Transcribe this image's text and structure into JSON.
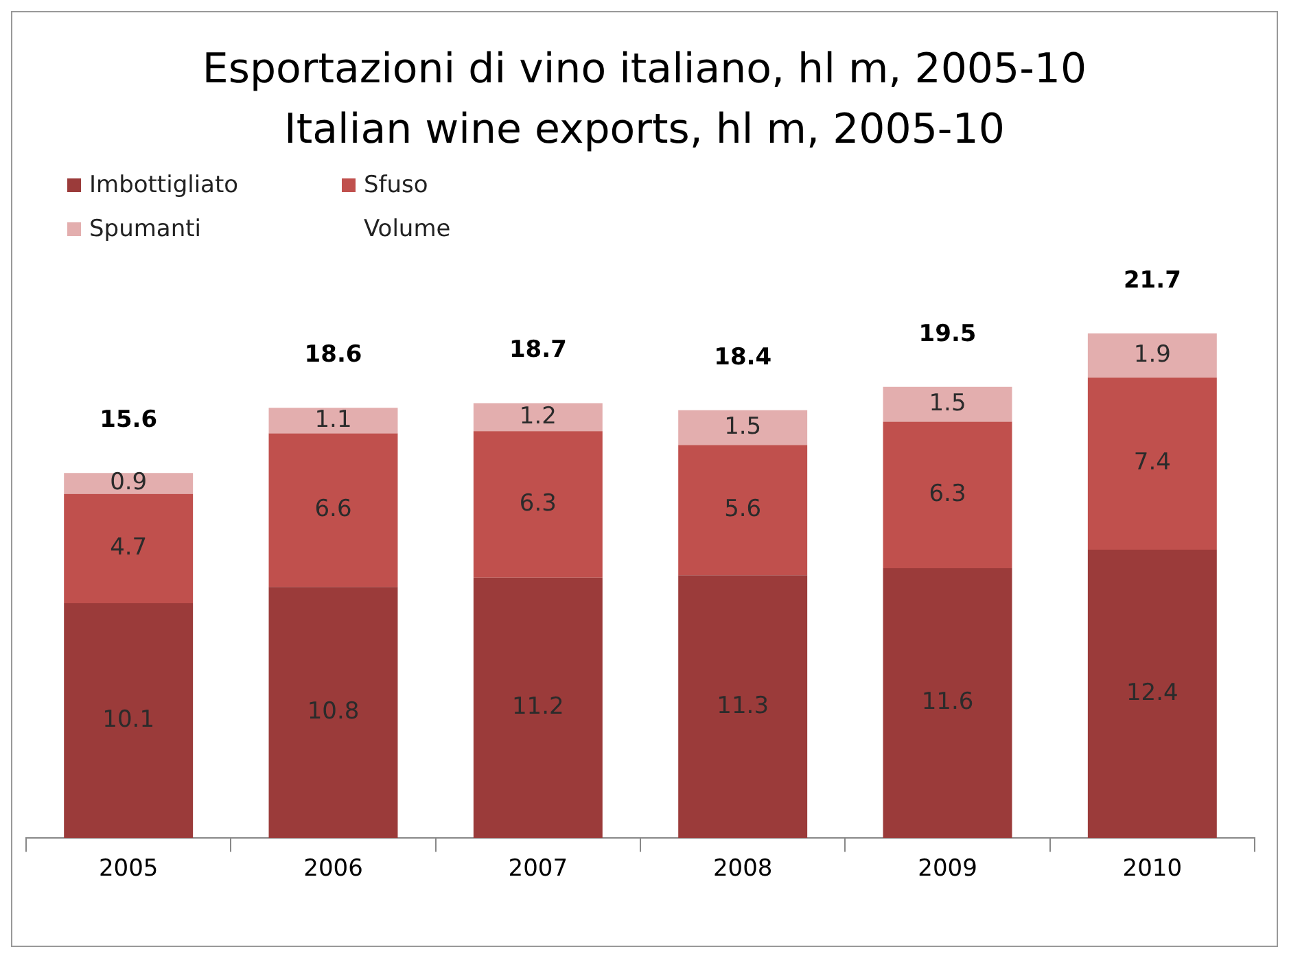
{
  "chart_data": {
    "type": "bar",
    "title": "Esportazioni di vino italiano, hl m, 2005-10",
    "subtitle": "Italian wine exports, hl m, 2005-10",
    "categories": [
      "2005",
      "2006",
      "2007",
      "2008",
      "2009",
      "2010"
    ],
    "series": [
      {
        "name": "Imbottigliato",
        "color": "#9b3b3a",
        "values": [
          10.1,
          10.8,
          11.2,
          11.3,
          11.6,
          12.4
        ]
      },
      {
        "name": "Sfuso",
        "color": "#c0504d",
        "values": [
          4.7,
          6.6,
          6.3,
          5.6,
          6.3,
          7.4
        ]
      },
      {
        "name": "Spumanti",
        "color": "#e3aeae",
        "values": [
          0.9,
          1.1,
          1.2,
          1.5,
          1.5,
          1.9
        ]
      }
    ],
    "stacked": true,
    "data_labels": true,
    "totals": [
      "15.6",
      "18.6",
      "18.7",
      "18.4",
      "19.5",
      "21.7"
    ],
    "annotations": [
      "Volume"
    ],
    "legend": "top left",
    "tick_labels": "x"
  }
}
